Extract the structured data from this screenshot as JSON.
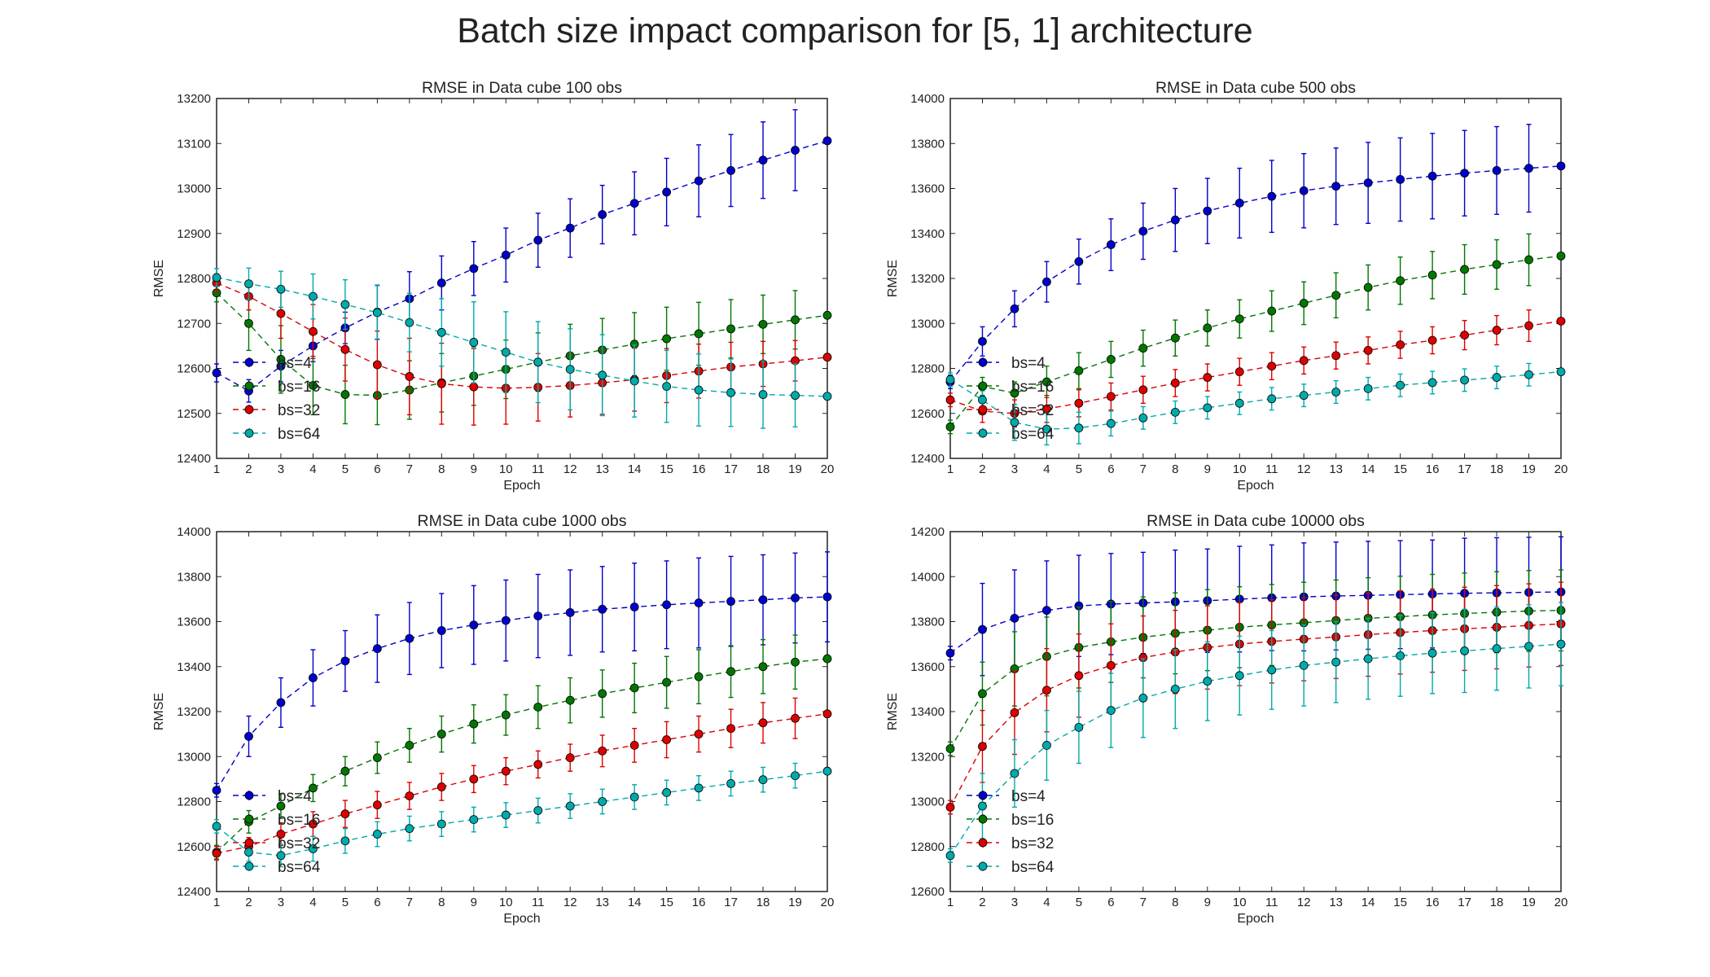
{
  "suptitle": "Batch size impact comparison for [5, 1] architecture",
  "colors": {
    "bs=4": "#0000cc",
    "bs=16": "#007700",
    "bs=32": "#dd0000",
    "bs=64": "#00aaaa"
  },
  "chart_data": [
    {
      "type": "line",
      "title": "RMSE in Data cube 100 obs",
      "xlabel": "Epoch",
      "ylabel": "RMSE",
      "xlim": [
        1,
        20
      ],
      "ylim": [
        12400,
        13200
      ],
      "yticks": [
        12400,
        12500,
        12600,
        12700,
        12800,
        12900,
        13000,
        13100,
        13200
      ],
      "legend": "lower-left",
      "grid": false,
      "x": [
        1,
        2,
        3,
        4,
        5,
        6,
        7,
        8,
        9,
        10,
        11,
        12,
        13,
        14,
        15,
        16,
        17,
        18,
        19,
        20
      ],
      "series": [
        {
          "name": "bs=4",
          "color": "#0000cc",
          "values": [
            12590,
            12550,
            12605,
            12650,
            12690,
            12725,
            12755,
            12790,
            12822,
            12852,
            12885,
            12912,
            12942,
            12967,
            12992,
            13017,
            13040,
            13063,
            13085,
            13106
          ],
          "errors": [
            20,
            25,
            35,
            35,
            35,
            60,
            60,
            60,
            60,
            60,
            60,
            65,
            65,
            70,
            75,
            80,
            80,
            85,
            90,
            0
          ]
        },
        {
          "name": "bs=16",
          "color": "#007700",
          "values": [
            12768,
            12700,
            12620,
            12562,
            12542,
            12540,
            12552,
            12568,
            12583,
            12598,
            12614,
            12628,
            12641,
            12654,
            12666,
            12677,
            12688,
            12698,
            12708,
            12718
          ],
          "errors": [
            20,
            60,
            75,
            65,
            65,
            65,
            65,
            65,
            65,
            65,
            65,
            70,
            70,
            70,
            70,
            70,
            65,
            65,
            65,
            0
          ]
        },
        {
          "name": "bs=32",
          "color": "#dd0000",
          "values": [
            12790,
            12760,
            12722,
            12682,
            12642,
            12608,
            12582,
            12566,
            12559,
            12556,
            12558,
            12562,
            12568,
            12575,
            12584,
            12594,
            12603,
            12610,
            12617,
            12625
          ],
          "errors": [
            20,
            30,
            55,
            60,
            70,
            75,
            85,
            90,
            85,
            80,
            75,
            70,
            70,
            70,
            60,
            60,
            55,
            50,
            45,
            0
          ]
        },
        {
          "name": "bs=64",
          "color": "#00aaaa",
          "values": [
            12802,
            12788,
            12776,
            12760,
            12742,
            12724,
            12702,
            12680,
            12658,
            12636,
            12614,
            12598,
            12585,
            12572,
            12560,
            12552,
            12546,
            12542,
            12540,
            12538
          ],
          "errors": [
            20,
            35,
            40,
            50,
            55,
            60,
            65,
            75,
            90,
            90,
            90,
            90,
            90,
            80,
            80,
            80,
            75,
            75,
            70,
            0
          ]
        }
      ]
    },
    {
      "type": "line",
      "title": "RMSE in Data cube 500 obs",
      "xlabel": "Epoch",
      "ylabel": "RMSE",
      "xlim": [
        1,
        20
      ],
      "ylim": [
        12400,
        14000
      ],
      "yticks": [
        12400,
        12600,
        12800,
        13000,
        13200,
        13400,
        13600,
        13800,
        14000
      ],
      "legend": "lower-left",
      "grid": false,
      "x": [
        1,
        2,
        3,
        4,
        5,
        6,
        7,
        8,
        9,
        10,
        11,
        12,
        13,
        14,
        15,
        16,
        17,
        18,
        19,
        20
      ],
      "series": [
        {
          "name": "bs=4",
          "color": "#0000cc",
          "values": [
            12740,
            12920,
            13065,
            13185,
            13275,
            13350,
            13410,
            13460,
            13500,
            13535,
            13565,
            13590,
            13610,
            13625,
            13640,
            13655,
            13668,
            13680,
            13690,
            13700
          ],
          "errors": [
            30,
            65,
            80,
            90,
            100,
            115,
            125,
            140,
            145,
            155,
            160,
            165,
            170,
            180,
            185,
            190,
            190,
            195,
            195,
            0
          ]
        },
        {
          "name": "bs=16",
          "color": "#007700",
          "values": [
            12540,
            12720,
            12690,
            12740,
            12790,
            12840,
            12890,
            12935,
            12980,
            13020,
            13055,
            13090,
            13125,
            13160,
            13190,
            13215,
            13240,
            13262,
            13283,
            13300
          ],
          "errors": [
            30,
            40,
            50,
            70,
            80,
            80,
            80,
            80,
            80,
            85,
            90,
            95,
            100,
            100,
            105,
            105,
            110,
            110,
            115,
            0
          ]
        },
        {
          "name": "bs=32",
          "color": "#dd0000",
          "values": [
            12660,
            12610,
            12600,
            12620,
            12645,
            12675,
            12705,
            12735,
            12760,
            12785,
            12810,
            12835,
            12857,
            12880,
            12905,
            12925,
            12948,
            12970,
            12990,
            13010
          ],
          "errors": [
            30,
            50,
            60,
            60,
            60,
            60,
            60,
            60,
            60,
            60,
            60,
            60,
            60,
            60,
            60,
            60,
            65,
            65,
            70,
            0
          ]
        },
        {
          "name": "bs=64",
          "color": "#00aaaa",
          "values": [
            12750,
            12660,
            12560,
            12530,
            12535,
            12555,
            12580,
            12605,
            12625,
            12645,
            12665,
            12680,
            12695,
            12710,
            12725,
            12737,
            12748,
            12760,
            12772,
            12785
          ],
          "errors": [
            30,
            40,
            80,
            70,
            70,
            55,
            50,
            50,
            50,
            50,
            50,
            50,
            50,
            50,
            50,
            50,
            50,
            50,
            50,
            0
          ]
        }
      ]
    },
    {
      "type": "line",
      "title": "RMSE in Data cube 1000 obs",
      "xlabel": "Epoch",
      "ylabel": "RMSE",
      "xlim": [
        1,
        20
      ],
      "ylim": [
        12400,
        14000
      ],
      "yticks": [
        12400,
        12600,
        12800,
        13000,
        13200,
        13400,
        13600,
        13800,
        14000
      ],
      "legend": "lower-left",
      "grid": false,
      "x": [
        1,
        2,
        3,
        4,
        5,
        6,
        7,
        8,
        9,
        10,
        11,
        12,
        13,
        14,
        15,
        16,
        17,
        18,
        19,
        20
      ],
      "series": [
        {
          "name": "bs=4",
          "color": "#0000cc",
          "values": [
            12850,
            13090,
            13240,
            13350,
            13425,
            13480,
            13525,
            13560,
            13585,
            13605,
            13625,
            13640,
            13655,
            13665,
            13675,
            13683,
            13690,
            13697,
            13705,
            13710
          ],
          "errors": [
            30,
            90,
            110,
            125,
            135,
            150,
            160,
            165,
            175,
            180,
            185,
            190,
            190,
            195,
            195,
            200,
            200,
            200,
            200,
            200
          ]
        },
        {
          "name": "bs=16",
          "color": "#007700",
          "values": [
            12575,
            12710,
            12780,
            12860,
            12935,
            12995,
            13050,
            13100,
            13145,
            13185,
            13220,
            13250,
            13280,
            13305,
            13330,
            13355,
            13378,
            13400,
            13420,
            13435
          ],
          "errors": [
            30,
            50,
            55,
            60,
            65,
            70,
            75,
            80,
            85,
            90,
            95,
            100,
            105,
            110,
            115,
            120,
            115,
            120,
            120,
            0
          ]
        },
        {
          "name": "bs=32",
          "color": "#dd0000",
          "values": [
            12570,
            12600,
            12655,
            12700,
            12745,
            12785,
            12825,
            12865,
            12900,
            12935,
            12965,
            12995,
            13025,
            13050,
            13075,
            13100,
            13125,
            13150,
            13170,
            13190
          ],
          "errors": [
            30,
            40,
            50,
            55,
            60,
            60,
            60,
            60,
            60,
            60,
            60,
            60,
            70,
            75,
            80,
            80,
            85,
            90,
            90,
            0
          ]
        },
        {
          "name": "bs=64",
          "color": "#00aaaa",
          "values": [
            12690,
            12575,
            12560,
            12590,
            12625,
            12655,
            12680,
            12700,
            12720,
            12740,
            12760,
            12780,
            12800,
            12820,
            12840,
            12860,
            12880,
            12897,
            12915,
            12935
          ],
          "errors": [
            30,
            40,
            50,
            55,
            55,
            55,
            55,
            55,
            55,
            55,
            55,
            55,
            55,
            55,
            55,
            55,
            55,
            55,
            55,
            0
          ]
        }
      ]
    },
    {
      "type": "line",
      "title": "RMSE in Data cube 10000 obs",
      "xlabel": "Epoch",
      "ylabel": "RMSE",
      "xlim": [
        1,
        20
      ],
      "ylim": [
        12600,
        14200
      ],
      "yticks": [
        12600,
        12800,
        13000,
        13200,
        13400,
        13600,
        13800,
        14000,
        14200
      ],
      "legend": "lower-left",
      "grid": false,
      "x": [
        1,
        2,
        3,
        4,
        5,
        6,
        7,
        8,
        9,
        10,
        11,
        12,
        13,
        14,
        15,
        16,
        17,
        18,
        19,
        20
      ],
      "series": [
        {
          "name": "bs=4",
          "color": "#0000cc",
          "values": [
            13660,
            13765,
            13815,
            13850,
            13870,
            13878,
            13883,
            13888,
            13893,
            13900,
            13906,
            13910,
            13914,
            13917,
            13920,
            13923,
            13926,
            13928,
            13930,
            13932
          ],
          "errors": [
            30,
            205,
            215,
            220,
            225,
            225,
            225,
            230,
            230,
            235,
            235,
            240,
            240,
            240,
            240,
            240,
            245,
            245,
            245,
            245
          ]
        },
        {
          "name": "bs=16",
          "color": "#007700",
          "values": [
            13235,
            13480,
            13590,
            13645,
            13685,
            13710,
            13730,
            13748,
            13762,
            13775,
            13785,
            13795,
            13805,
            13815,
            13822,
            13830,
            13836,
            13842,
            13847,
            13850
          ],
          "errors": [
            30,
            140,
            165,
            175,
            180,
            180,
            180,
            180,
            180,
            180,
            180,
            180,
            180,
            180,
            180,
            180,
            180,
            180,
            180,
            180
          ]
        },
        {
          "name": "bs=32",
          "color": "#dd0000",
          "values": [
            12975,
            13245,
            13395,
            13495,
            13560,
            13605,
            13640,
            13665,
            13685,
            13700,
            13712,
            13722,
            13732,
            13742,
            13752,
            13760,
            13768,
            13775,
            13783,
            13790
          ],
          "errors": [
            30,
            160,
            185,
            185,
            185,
            185,
            185,
            185,
            185,
            185,
            185,
            185,
            185,
            185,
            185,
            185,
            185,
            185,
            185,
            185
          ]
        },
        {
          "name": "bs=64",
          "color": "#00aaaa",
          "values": [
            12760,
            12980,
            13125,
            13250,
            13330,
            13405,
            13460,
            13500,
            13535,
            13560,
            13585,
            13605,
            13620,
            13635,
            13648,
            13660,
            13670,
            13680,
            13690,
            13700
          ],
          "errors": [
            30,
            145,
            150,
            155,
            160,
            165,
            175,
            175,
            175,
            175,
            175,
            180,
            180,
            180,
            180,
            180,
            185,
            185,
            185,
            185
          ]
        }
      ]
    }
  ]
}
